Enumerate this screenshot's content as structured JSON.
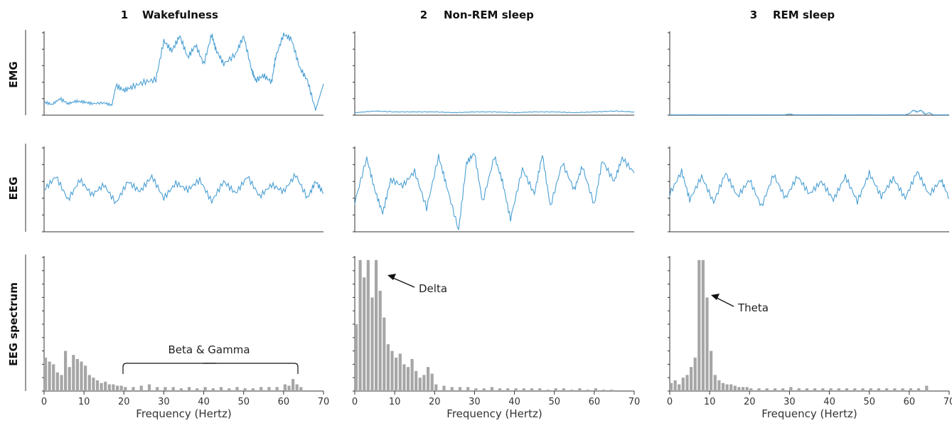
{
  "columns": [
    {
      "number": "1",
      "title": "Wakefulness"
    },
    {
      "number": "2",
      "title": "Non-REM sleep"
    },
    {
      "number": "3",
      "title": "REM sleep"
    }
  ],
  "rows": [
    "EMG",
    "EEG",
    "EEG spectrum"
  ],
  "colors": {
    "trace": "#4a9fd4",
    "spectrum": "#a6a6a6",
    "axis": "#333333",
    "annotation": "#111111"
  },
  "chart_data": [
    {
      "type": "line",
      "panel": "EMG",
      "state": "Wakefulness",
      "x_range": [
        0,
        70
      ],
      "x": [
        0,
        2,
        4,
        6,
        8,
        10,
        12,
        15,
        17,
        18,
        20,
        22,
        25,
        28,
        30,
        32,
        34,
        36,
        38,
        40,
        42,
        43,
        45,
        48,
        50,
        52,
        53,
        55,
        57,
        58,
        60,
        62,
        64,
        66,
        68,
        70
      ],
      "y": [
        0.16,
        0.13,
        0.2,
        0.14,
        0.17,
        0.16,
        0.14,
        0.15,
        0.12,
        0.36,
        0.3,
        0.34,
        0.4,
        0.43,
        0.9,
        0.78,
        0.96,
        0.7,
        0.85,
        0.62,
        0.98,
        0.8,
        0.62,
        0.74,
        0.96,
        0.55,
        0.42,
        0.48,
        0.4,
        0.7,
        0.98,
        0.92,
        0.58,
        0.42,
        0.06,
        0.38
      ]
    },
    {
      "type": "line",
      "panel": "EMG",
      "state": "Non-REM sleep",
      "x_range": [
        0,
        70
      ],
      "x": [
        0,
        5,
        10,
        15,
        20,
        25,
        30,
        35,
        40,
        45,
        50,
        55,
        60,
        65,
        70
      ],
      "y": [
        0.03,
        0.05,
        0.04,
        0.04,
        0.04,
        0.03,
        0.04,
        0.04,
        0.03,
        0.04,
        0.04,
        0.03,
        0.04,
        0.05,
        0.04
      ]
    },
    {
      "type": "line",
      "panel": "EMG",
      "state": "REM sleep",
      "x_range": [
        0,
        70
      ],
      "x": [
        0,
        10,
        20,
        29,
        30,
        31,
        40,
        50,
        59,
        60,
        61,
        62,
        63,
        64,
        65,
        66,
        70
      ],
      "y": [
        0.005,
        0.005,
        0.005,
        0.005,
        0.015,
        0.005,
        0.005,
        0.005,
        0.005,
        0.02,
        0.06,
        0.04,
        0.06,
        0.01,
        0.03,
        0.005,
        0.005
      ]
    },
    {
      "type": "line",
      "panel": "EEG",
      "state": "Wakefulness",
      "x_range": [
        0,
        70
      ],
      "x": [
        0,
        3,
        6,
        9,
        12,
        15,
        18,
        21,
        24,
        27,
        30,
        33,
        36,
        39,
        42,
        45,
        48,
        51,
        54,
        57,
        60,
        63,
        66,
        68,
        70
      ],
      "y": [
        0.5,
        0.66,
        0.38,
        0.62,
        0.44,
        0.56,
        0.34,
        0.6,
        0.48,
        0.66,
        0.4,
        0.58,
        0.5,
        0.62,
        0.36,
        0.6,
        0.46,
        0.66,
        0.42,
        0.56,
        0.48,
        0.68,
        0.4,
        0.6,
        0.46
      ]
    },
    {
      "type": "line",
      "panel": "EEG",
      "state": "Non-REM sleep",
      "x_range": [
        0,
        70
      ],
      "x": [
        0,
        3,
        5,
        7,
        9,
        12,
        15,
        18,
        21,
        23,
        26,
        28,
        30,
        32,
        35,
        37,
        39,
        42,
        45,
        47,
        49,
        52,
        55,
        57,
        60,
        62,
        65,
        67,
        70
      ],
      "y": [
        0.35,
        0.88,
        0.5,
        0.22,
        0.62,
        0.55,
        0.72,
        0.28,
        0.9,
        0.55,
        0.02,
        0.82,
        0.94,
        0.35,
        0.9,
        0.6,
        0.15,
        0.75,
        0.45,
        0.92,
        0.3,
        0.82,
        0.5,
        0.78,
        0.32,
        0.85,
        0.6,
        0.88,
        0.7
      ]
    },
    {
      "type": "line",
      "panel": "EEG",
      "state": "REM sleep",
      "x_range": [
        0,
        70
      ],
      "x": [
        0,
        3,
        5,
        8,
        11,
        14,
        17,
        20,
        23,
        26,
        29,
        32,
        35,
        38,
        41,
        44,
        47,
        50,
        53,
        56,
        59,
        62,
        65,
        68,
        70
      ],
      "y": [
        0.45,
        0.72,
        0.38,
        0.66,
        0.35,
        0.7,
        0.42,
        0.62,
        0.3,
        0.68,
        0.4,
        0.66,
        0.45,
        0.6,
        0.38,
        0.66,
        0.36,
        0.7,
        0.42,
        0.64,
        0.4,
        0.72,
        0.44,
        0.62,
        0.4
      ]
    },
    {
      "type": "bar",
      "panel": "EEG spectrum",
      "state": "Wakefulness",
      "xlabel": "Frequency (Hertz)",
      "x_ticks": [
        0,
        10,
        20,
        30,
        40,
        50,
        60,
        70
      ],
      "x_range": [
        0,
        70
      ],
      "x": [
        0,
        1,
        2,
        3,
        4,
        5,
        6,
        7,
        8,
        9,
        10,
        11,
        12,
        13,
        14,
        15,
        16,
        17,
        18,
        19,
        20,
        22,
        24,
        26,
        28,
        30,
        32,
        34,
        36,
        38,
        40,
        42,
        44,
        46,
        48,
        50,
        52,
        54,
        56,
        58,
        60,
        61,
        62,
        63,
        64
      ],
      "values": [
        0.25,
        0.22,
        0.2,
        0.14,
        0.12,
        0.3,
        0.18,
        0.27,
        0.24,
        0.22,
        0.19,
        0.12,
        0.1,
        0.08,
        0.06,
        0.07,
        0.05,
        0.05,
        0.04,
        0.04,
        0.03,
        0.03,
        0.04,
        0.05,
        0.03,
        0.03,
        0.03,
        0.02,
        0.03,
        0.02,
        0.03,
        0.02,
        0.03,
        0.02,
        0.03,
        0.02,
        0.02,
        0.03,
        0.03,
        0.03,
        0.05,
        0.04,
        0.09,
        0.05,
        0.03
      ],
      "annotation": "Beta & Gamma"
    },
    {
      "type": "bar",
      "panel": "EEG spectrum",
      "state": "Non-REM sleep",
      "xlabel": "Frequency (Hertz)",
      "x_ticks": [
        0,
        10,
        20,
        30,
        40,
        50,
        60,
        70
      ],
      "x_range": [
        0,
        70
      ],
      "x": [
        0,
        1,
        2,
        3,
        4,
        5,
        6,
        7,
        8,
        9,
        10,
        11,
        12,
        13,
        14,
        15,
        16,
        17,
        18,
        19,
        20,
        22,
        24,
        26,
        28,
        30,
        32,
        34,
        36,
        38,
        40,
        42,
        44,
        46,
        48,
        50,
        52,
        54,
        56,
        58,
        60,
        62,
        64
      ],
      "values": [
        0.5,
        0.98,
        0.85,
        0.98,
        0.7,
        0.98,
        0.75,
        0.55,
        0.35,
        0.3,
        0.25,
        0.28,
        0.2,
        0.18,
        0.24,
        0.15,
        0.1,
        0.12,
        0.18,
        0.13,
        0.05,
        0.04,
        0.03,
        0.03,
        0.03,
        0.02,
        0.02,
        0.03,
        0.02,
        0.02,
        0.02,
        0.02,
        0.02,
        0.02,
        0.01,
        0.02,
        0.02,
        0.01,
        0.02,
        0.01,
        0.02,
        0.01,
        0.01
      ],
      "annotation": "Delta"
    },
    {
      "type": "bar",
      "panel": "EEG spectrum",
      "state": "REM sleep",
      "xlabel": "Frequency (Hertz)",
      "x_ticks": [
        0,
        10,
        20,
        30,
        40,
        50,
        60,
        70
      ],
      "x_range": [
        0,
        70
      ],
      "x": [
        0,
        1,
        2,
        3,
        4,
        5,
        6,
        7,
        8,
        9,
        10,
        11,
        12,
        13,
        14,
        15,
        16,
        17,
        18,
        19,
        20,
        22,
        24,
        26,
        28,
        30,
        32,
        34,
        36,
        38,
        40,
        42,
        44,
        46,
        48,
        50,
        52,
        54,
        56,
        58,
        60,
        62,
        64
      ],
      "values": [
        0.06,
        0.08,
        0.05,
        0.1,
        0.12,
        0.18,
        0.25,
        0.98,
        0.98,
        0.7,
        0.3,
        0.12,
        0.08,
        0.06,
        0.05,
        0.05,
        0.04,
        0.03,
        0.03,
        0.03,
        0.02,
        0.02,
        0.02,
        0.02,
        0.02,
        0.03,
        0.02,
        0.02,
        0.02,
        0.02,
        0.02,
        0.02,
        0.02,
        0.02,
        0.02,
        0.02,
        0.02,
        0.02,
        0.02,
        0.02,
        0.02,
        0.02,
        0.04
      ],
      "annotation": "Theta"
    }
  ]
}
